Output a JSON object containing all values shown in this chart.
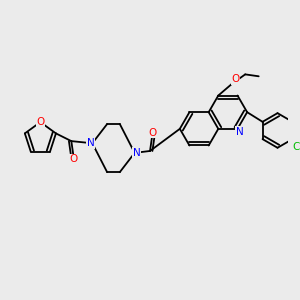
{
  "background_color": "#ebebeb",
  "bond_color": "#000000",
  "atom_colors": {
    "N": "#0000ff",
    "O": "#ff0000",
    "Cl": "#00bb00",
    "C": "#000000"
  },
  "font_size": 7.5,
  "bond_width": 1.3,
  "figsize": [
    3.0,
    3.0
  ],
  "dpi": 100
}
